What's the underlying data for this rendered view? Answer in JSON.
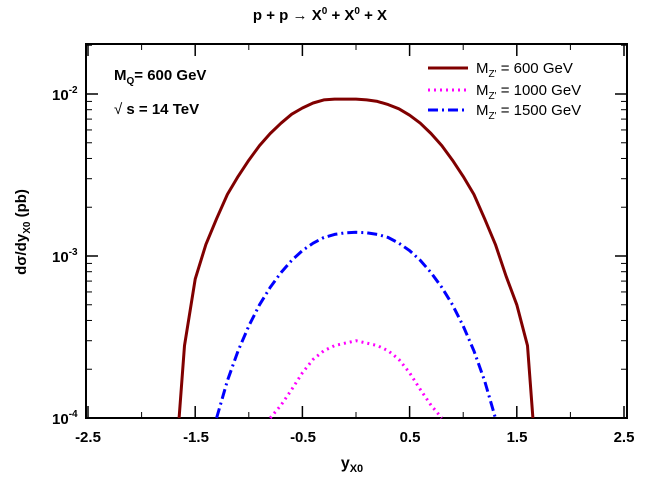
{
  "chart_data": {
    "type": "line",
    "title": {
      "lhs": "p + p",
      "arrow": "→",
      "x1": "X",
      "x1sup": "0",
      "plus1": "+",
      "x2": "X",
      "x2sup": "0",
      "plus2": "+ X"
    },
    "xlabel": {
      "main": "y",
      "sub": "X0"
    },
    "ylabel": {
      "pre": "dσ/dy",
      "sub": "X0",
      "post": " (pb)"
    },
    "xlim": [
      -2.5,
      2.5
    ],
    "ylim": [
      0.0001,
      0.025
    ],
    "yscale": "log",
    "x_ticks": [
      "-2.5",
      "-1.5",
      "-0.5",
      "0.5",
      "1.5",
      "2.5"
    ],
    "y_ticks": [
      {
        "base": "10",
        "exp": "-2",
        "value": 0.01
      },
      {
        "base": "10",
        "exp": "-3",
        "value": 0.001
      },
      {
        "base": "10",
        "exp": "-4",
        "value": 0.0001
      }
    ],
    "annotations": {
      "mass_main": "M",
      "mass_sub": "Q",
      "mass_rest": "= 600 GeV",
      "sqrt_sym": "√",
      "energy": "s = 14 TeV"
    },
    "legend_position": "top-right",
    "x": [
      -1.65,
      -1.6,
      -1.5,
      -1.4,
      -1.3,
      -1.2,
      -1.1,
      -1.0,
      -0.9,
      -0.8,
      -0.7,
      -0.6,
      -0.5,
      -0.4,
      -0.3,
      -0.2,
      -0.1,
      0.0,
      0.1,
      0.2,
      0.3,
      0.4,
      0.5,
      0.6,
      0.7,
      0.8,
      0.9,
      1.0,
      1.1,
      1.2,
      1.3,
      1.4,
      1.5,
      1.6,
      1.65
    ],
    "series": [
      {
        "name_main": "M",
        "name_sub": "Z'",
        "name_rest": " = 600 GeV",
        "color": "#800000",
        "style": "solid",
        "values": [
          0.0001,
          0.00028,
          0.00072,
          0.00118,
          0.0017,
          0.0024,
          0.0031,
          0.0039,
          0.0048,
          0.0057,
          0.0066,
          0.0075,
          0.0082,
          0.0088,
          0.0092,
          0.0093,
          0.0093,
          0.0093,
          0.0092,
          0.009,
          0.0086,
          0.0081,
          0.0074,
          0.0066,
          0.0057,
          0.0048,
          0.0039,
          0.0031,
          0.0024,
          0.0017,
          0.00118,
          0.00075,
          0.0005,
          0.00028,
          0.0001
        ]
      },
      {
        "name_main": "M",
        "name_sub": "Z'",
        "name_rest": " = 1000 GeV",
        "color": "#ff00ff",
        "style": "dotted",
        "values": [
          null,
          null,
          null,
          null,
          null,
          null,
          null,
          null,
          null,
          0.0001,
          0.00012,
          0.00015,
          0.00019,
          0.00023,
          0.00026,
          0.00028,
          0.00029,
          0.0003,
          0.00029,
          0.00028,
          0.00026,
          0.00023,
          0.00019,
          0.00015,
          0.00012,
          0.0001,
          null,
          null,
          null,
          null,
          null,
          null,
          null,
          null,
          null
        ]
      },
      {
        "name_main": "M",
        "name_sub": "Z'",
        "name_rest": " = 1500 GeV",
        "color": "#0000ff",
        "style": "dashdot",
        "values": [
          null,
          null,
          null,
          null,
          0.0001,
          0.00017,
          0.00026,
          0.00037,
          0.0005,
          0.00064,
          0.00079,
          0.00094,
          0.00108,
          0.0012,
          0.0013,
          0.00136,
          0.00139,
          0.0014,
          0.00139,
          0.00136,
          0.0013,
          0.0012,
          0.00108,
          0.00094,
          0.00079,
          0.00064,
          0.0005,
          0.00037,
          0.00026,
          0.00017,
          0.0001,
          null,
          null,
          null,
          null
        ]
      }
    ]
  }
}
